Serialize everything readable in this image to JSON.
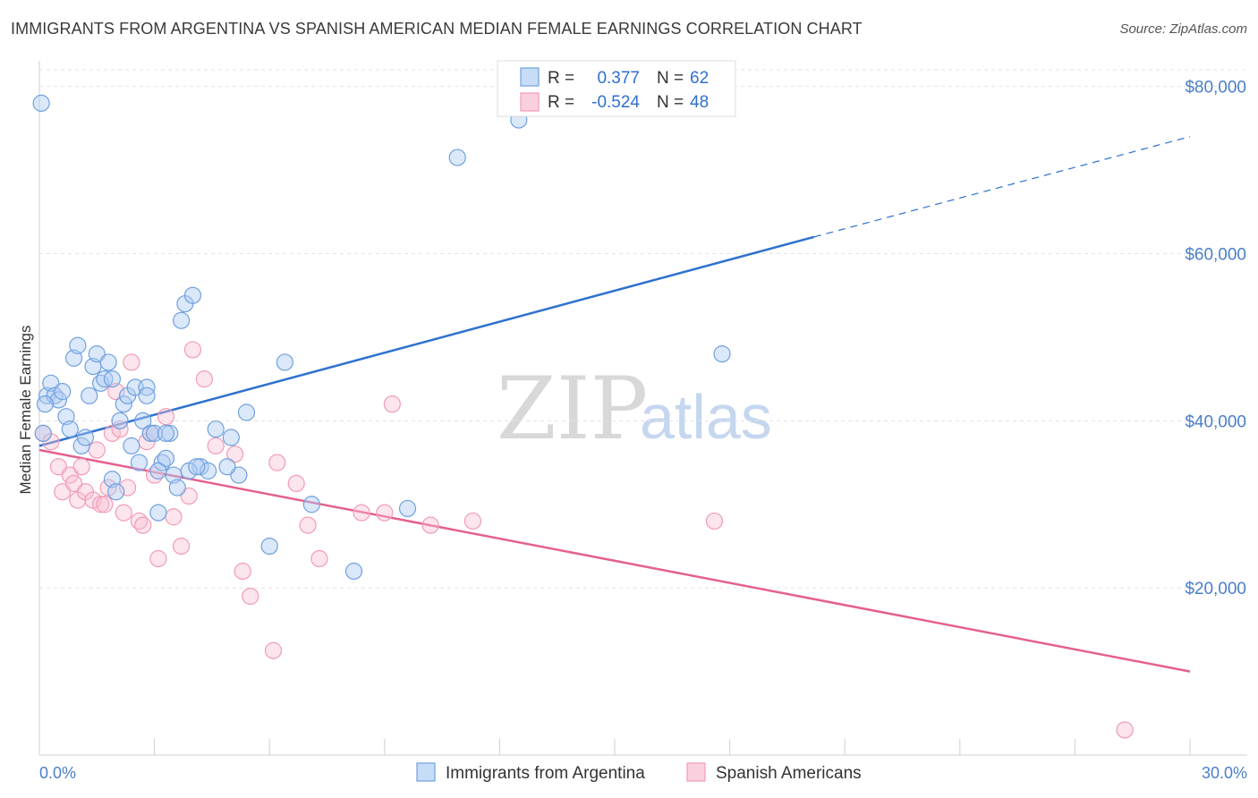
{
  "title": "IMMIGRANTS FROM ARGENTINA VS SPANISH AMERICAN MEDIAN FEMALE EARNINGS CORRELATION CHART",
  "source": "Source: ZipAtlas.com",
  "watermark": {
    "zip": "ZIP",
    "atlas": "atlas"
  },
  "legend": {
    "rows": [
      {
        "r_label": "R =",
        "r_value": "0.377",
        "n_label": "N =",
        "n_value": "62"
      },
      {
        "r_label": "R =",
        "r_value": "-0.524",
        "n_label": "N =",
        "n_value": "48"
      }
    ]
  },
  "bottom_legend": [
    "Immigrants from Argentina",
    "Spanish Americans"
  ],
  "chart_data": {
    "type": "scatter",
    "title": "IMMIGRANTS FROM ARGENTINA VS SPANISH AMERICAN MEDIAN FEMALE EARNINGS CORRELATION CHART",
    "xlabel": "",
    "ylabel": "Median Female Earnings",
    "xlim": [
      0,
      30
    ],
    "ylim": [
      0,
      82000
    ],
    "x_tick_labels": [
      "0.0%",
      "30.0%"
    ],
    "y_ticks": [
      20000,
      40000,
      60000,
      80000
    ],
    "y_tick_labels": [
      "$20,000",
      "$40,000",
      "$60,000",
      "$80,000"
    ],
    "grid": true,
    "legend_position": "top-center",
    "colors": {
      "argentina": "#6fa0e0",
      "spanish": "#f29bb6",
      "argentina_line": "#2f72cf",
      "spanish_line": "#e4608e"
    },
    "series": [
      {
        "name": "Immigrants from Argentina",
        "x": [
          0.1,
          0.2,
          0.3,
          0.4,
          0.5,
          0.6,
          0.7,
          0.8,
          0.9,
          1.0,
          1.1,
          1.2,
          1.3,
          1.4,
          1.5,
          1.6,
          1.7,
          1.8,
          1.9,
          2.0,
          2.1,
          2.2,
          2.3,
          2.4,
          2.5,
          2.6,
          2.7,
          2.8,
          2.9,
          3.0,
          3.1,
          3.2,
          3.3,
          3.4,
          3.5,
          3.6,
          3.8,
          4.0,
          4.2,
          4.4,
          4.6,
          5.0,
          5.2,
          5.4,
          6.0,
          6.4,
          7.1,
          8.2,
          9.6,
          10.9,
          12.5,
          17.8,
          0.05,
          0.15,
          3.9,
          4.1,
          3.7,
          2.8,
          3.3,
          4.9,
          3.1,
          1.9
        ],
        "y": [
          38500,
          43000,
          44500,
          43000,
          42500,
          43500,
          40500,
          39000,
          47500,
          49000,
          37000,
          38000,
          43000,
          46500,
          48000,
          44500,
          45000,
          47000,
          33000,
          31500,
          40000,
          42000,
          43000,
          37000,
          44000,
          35000,
          40000,
          44000,
          38500,
          38500,
          29000,
          35000,
          35500,
          38500,
          33500,
          32000,
          54000,
          55000,
          34500,
          34000,
          39000,
          38000,
          33500,
          41000,
          25000,
          47000,
          30000,
          22000,
          29500,
          71500,
          76000,
          48000,
          78000,
          42000,
          34000,
          34500,
          52000,
          43000,
          38500,
          34500,
          34000,
          45000
        ]
      },
      {
        "name": "Spanish Americans",
        "x": [
          0.1,
          0.3,
          0.5,
          0.6,
          0.8,
          0.9,
          1.0,
          1.1,
          1.2,
          1.4,
          1.5,
          1.6,
          1.7,
          1.8,
          1.9,
          2.0,
          2.1,
          2.2,
          2.3,
          2.4,
          2.6,
          2.7,
          2.8,
          2.9,
          3.0,
          3.1,
          3.3,
          3.5,
          3.7,
          3.9,
          4.0,
          4.3,
          4.6,
          5.1,
          5.3,
          5.5,
          6.1,
          6.2,
          6.7,
          7.0,
          7.3,
          8.4,
          9.0,
          9.2,
          10.2,
          11.3,
          17.6,
          28.3
        ],
        "y": [
          38500,
          37500,
          34500,
          31500,
          33500,
          32500,
          30500,
          34500,
          31500,
          30500,
          36500,
          30000,
          30000,
          32000,
          38500,
          43500,
          39000,
          29000,
          32000,
          47000,
          28000,
          27500,
          37500,
          38500,
          33500,
          23500,
          40500,
          28500,
          25000,
          31000,
          48500,
          45000,
          37000,
          36000,
          22000,
          19000,
          12500,
          35000,
          32500,
          27500,
          23500,
          29000,
          29000,
          42000,
          27500,
          28000,
          28000,
          3000
        ]
      }
    ],
    "trend_lines": [
      {
        "name": "Immigrants from Argentina",
        "solid": {
          "x": [
            0,
            20.2
          ],
          "y": [
            37000,
            62000
          ]
        },
        "dashed": {
          "x": [
            20.2,
            30
          ],
          "y": [
            62000,
            74000
          ]
        }
      },
      {
        "name": "Spanish Americans",
        "solid": {
          "x": [
            0,
            30
          ],
          "y": [
            36500,
            10000
          ]
        }
      }
    ]
  }
}
